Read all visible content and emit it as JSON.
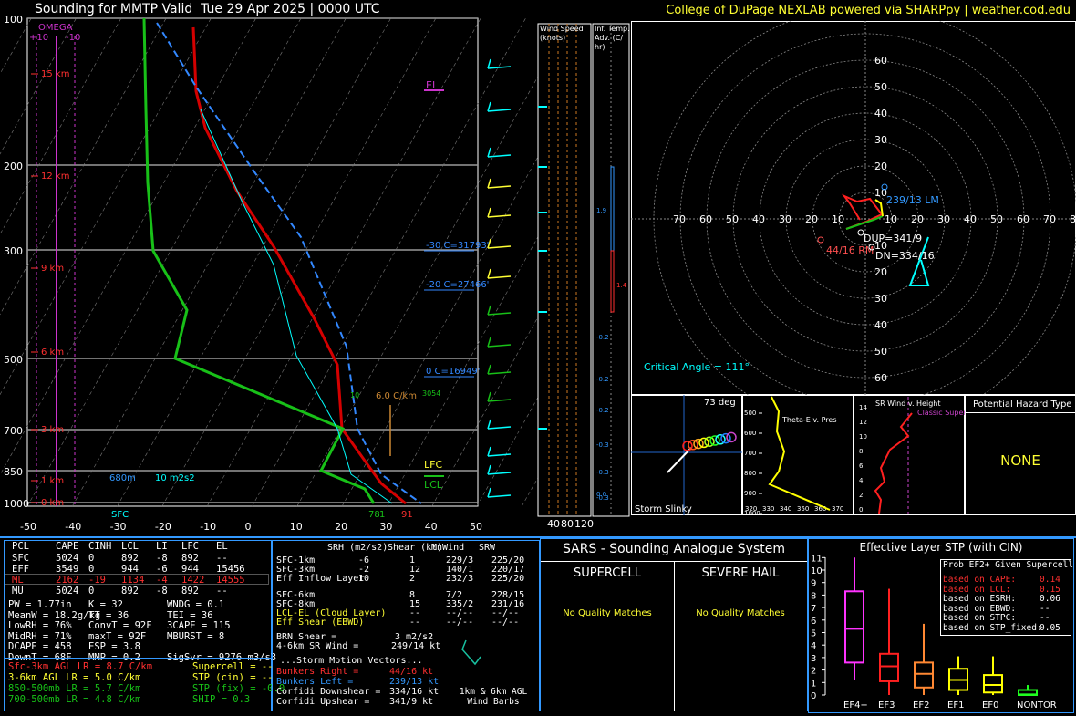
{
  "header": {
    "title": "Sounding for MMTP Valid  Tue 29 Apr 2025 | 0000 UTC",
    "credit": "College of DuPage NEXLAB powered via SHARPpy | weather.cod.edu"
  },
  "skewt": {
    "pressure_labels": [
      "100",
      "200",
      "300",
      "500",
      "700",
      "850",
      "1000"
    ],
    "temp_labels": [
      "-50",
      "-40",
      "-30",
      "-20",
      "-10",
      "0",
      "10",
      "20",
      "30",
      "40",
      "50"
    ],
    "height_labels": [
      "15 km",
      "12 km",
      "9 km",
      "6 km",
      "3 km",
      "1 km",
      "0 km"
    ],
    "omega_label": "OMEGA",
    "omega_ticks": [
      "+10",
      "-10"
    ],
    "el_label": "EL",
    "lfc_label": "LFC",
    "lcl_label": "LCL",
    "isotherm_labels": [
      "-30 C=31793'",
      "-20 C=27466'",
      "0 C=16949'"
    ],
    "mixing_labels": [
      "10",
      "6.0 C/km",
      "3054"
    ],
    "sfc_label": "SFC",
    "srh_height": "680m",
    "srh_value": "10 m2s2",
    "sfc_temp": "78",
    "sfc_dew": "1",
    "sfc_temp2": "91"
  },
  "wind_speed": {
    "title": "Wind Speed (knots)",
    "ticks": [
      "40",
      "80",
      "120"
    ]
  },
  "inf_temp": {
    "title": "Inf. Temp. Adv. (C/ hr)",
    "values": [
      "1.9",
      "1.4",
      "-0.2",
      "-0.2",
      "-0.2",
      "-0.3",
      "-0.3",
      "-0.3",
      "0.0"
    ]
  },
  "hodograph": {
    "y_labels": [
      "60",
      "50",
      "40",
      "30",
      "20",
      "10",
      "10",
      "20",
      "30",
      "40",
      "50",
      "60"
    ],
    "x_labels": [
      "70",
      "60",
      "50",
      "40",
      "30",
      "20",
      "10",
      "10",
      "20",
      "30",
      "40",
      "50",
      "60",
      "70",
      "8"
    ],
    "lm": "239/13 LM",
    "rm": "44/16 RM",
    "dup": "DUP=341/9",
    "dn": "DN=334/16",
    "critical_angle": "Critical Angle = 111°"
  },
  "slinky": {
    "label": "Storm Slinky",
    "deg": "73 deg"
  },
  "theta": {
    "title": "Theta-E v. Pres",
    "y": [
      "500",
      "600",
      "700",
      "800",
      "900",
      "1000"
    ],
    "x": [
      "320",
      "330",
      "340",
      "350",
      "360",
      "370"
    ]
  },
  "srwind": {
    "title": "SR Wind v. Height",
    "y": [
      "14",
      "12",
      "10",
      "8",
      "6",
      "4",
      "2",
      "0"
    ],
    "classic": "Classic Supercell"
  },
  "hazard": {
    "title": "Potential Hazard Type",
    "value": "NONE"
  },
  "parcels": {
    "headers": [
      "PCL",
      "CAPE",
      "CINH",
      "LCL",
      "LI",
      "LFC",
      "EL"
    ],
    "rows": [
      [
        "SFC",
        "5024",
        "0",
        "892",
        "-8",
        "892",
        "--"
      ],
      [
        "EFF",
        "3549",
        "0",
        "944",
        "-6",
        "944",
        "15456"
      ],
      [
        "ML",
        "2162",
        "-19",
        "1134",
        "-4",
        "1422",
        "14555"
      ],
      [
        "MU",
        "5024",
        "0",
        "892",
        "-8",
        "892",
        "--"
      ]
    ]
  },
  "indices": {
    "col1": [
      "PW = 1.77in",
      "MeanW = 18.2g/kg",
      "LowRH = 76%",
      "MidRH = 71%",
      "DCAPE = 458",
      "DownT = 68F"
    ],
    "col2": [
      "K = 32",
      "TT = 36",
      "ConvT = 92F",
      "maxT = 92F",
      "ESP = 3.8",
      "MMP = 0.2"
    ],
    "col3": [
      "WNDG = 0.1",
      "TEI = 36",
      "3CAPE = 115",
      "MBURST = 8",
      "",
      "SigSvr = 9276 m3/s3"
    ]
  },
  "lapse": [
    "Sfc-3km AGL LR = 8.7 C/km",
    "3-6km AGL LR = 5.0 C/km",
    "850-500mb LR = 5.7 C/km",
    "700-500mb LR = 4.8 C/km"
  ],
  "composite": [
    "Supercell = --",
    "STP (cin) = --",
    "STP (fix) = -0.0",
    "SHIP = 0.3"
  ],
  "kinematics": {
    "headers": [
      "SRH (m2/s2)",
      "Shear (kt)",
      "MnWind",
      "SRW"
    ],
    "rows": [
      [
        "SFC-1km",
        "-6",
        "1",
        "229/3",
        "225/20"
      ],
      [
        "SFC-3km",
        "-2",
        "12",
        "140/1",
        "220/17"
      ],
      [
        "Eff Inflow Layer",
        "10",
        "2",
        "232/3",
        "225/20"
      ],
      [
        "SFC-6km",
        "",
        "8",
        "7/2",
        "228/15"
      ],
      [
        "SFC-8km",
        "",
        "15",
        "335/2",
        "231/16"
      ],
      [
        "LCL-EL (Cloud Layer)",
        "",
        "--",
        "--/--",
        "--/--"
      ],
      [
        "Eff Shear (EBWD)",
        "",
        "--",
        "--/--",
        "--/--"
      ]
    ],
    "brn": [
      "BRN Shear =",
      "3 m2/s2"
    ],
    "sr46": [
      "4-6km SR Wind =",
      "249/14 kt"
    ],
    "storm_motion_title": "...Storm Motion Vectors...",
    "motions": [
      [
        "Bunkers Right =",
        "44/16 kt"
      ],
      [
        "Bunkers Left =",
        "239/13 kt"
      ],
      [
        "Corfidi Downshear =",
        "334/16 kt"
      ],
      [
        "Corfidi Upshear =",
        "341/9 kt"
      ]
    ],
    "barbs_label": "1km & 6km AGL Wind Barbs"
  },
  "sars": {
    "title": "SARS - Sounding Analogue System",
    "supercell": "SUPERCELL",
    "hail": "SEVERE HAIL",
    "sup_match": "No Quality Matches",
    "hail_match": "No Quality Matches"
  },
  "stp": {
    "title": "Effective Layer STP (with CIN)",
    "y_ticks": [
      "11",
      "10",
      "9",
      "8",
      "7",
      "6",
      "5",
      "4",
      "3",
      "2",
      "1",
      "0"
    ],
    "categories": [
      "EF4+",
      "EF3",
      "EF2",
      "EF1",
      "EF0",
      "NONTOR"
    ],
    "prob_title": "Prob EF2+ Given Supercell",
    "prob_rows": [
      [
        "based on CAPE:",
        "0.14"
      ],
      [
        "based on LCL:",
        "0.15"
      ],
      [
        "based on ESRH:",
        "0.06"
      ],
      [
        "based on EBWD:",
        "--"
      ],
      [
        "based on STPC:",
        "--"
      ],
      [
        "based on STP_fixed:",
        "0.05"
      ]
    ]
  },
  "colors": {
    "temp": "#d40000",
    "dew": "#18c018",
    "wetbulb": "#00ffff",
    "virtual": "#3388ff",
    "parcel": "#ffffff"
  }
}
